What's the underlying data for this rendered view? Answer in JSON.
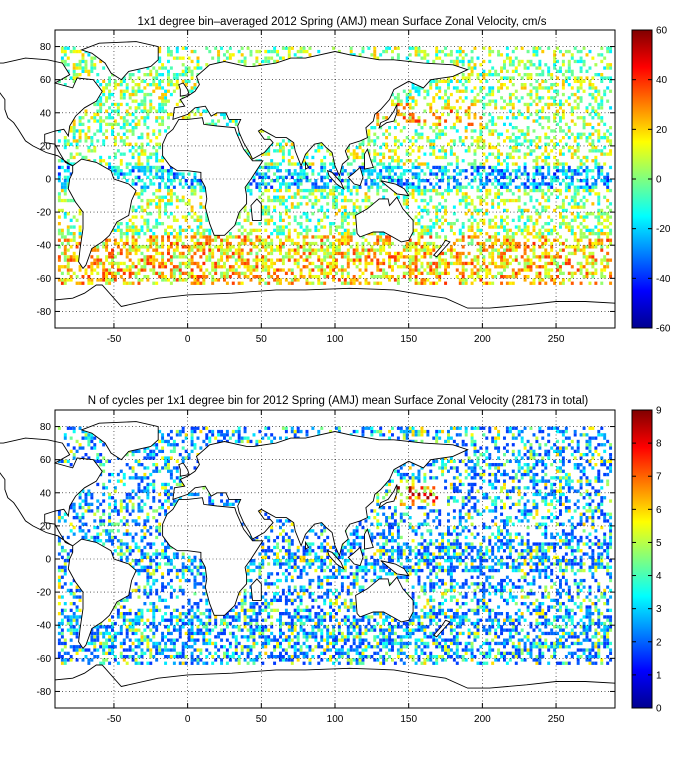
{
  "chart_data": [
    {
      "type": "heatmap",
      "title": "1x1 degree bin–averaged 2012 Spring (AMJ) mean Surface Zonal Velocity, cm/s",
      "xlim": [
        -90,
        290
      ],
      "ylim": [
        -90,
        90
      ],
      "x_ticks": [
        -50,
        0,
        50,
        100,
        150,
        200,
        250
      ],
      "x_tick_labels": [
        "-50",
        "0",
        "50",
        "100",
        "150",
        "200",
        "250"
      ],
      "y_ticks": [
        80,
        60,
        40,
        20,
        0,
        -20,
        -40,
        -60,
        -80
      ],
      "y_tick_labels": [
        "80",
        "60",
        "40",
        "20",
        "0",
        "-20",
        "-40",
        "-60",
        "-80"
      ],
      "grid": true,
      "colorbar": {
        "range": [
          -60,
          60
        ],
        "ticks": [
          60,
          40,
          20,
          0,
          -20,
          -40,
          -60
        ],
        "tick_labels": [
          "60",
          "40",
          "20",
          "0",
          "-20",
          "-40",
          "-60"
        ],
        "colormap": "jet"
      }
    },
    {
      "type": "heatmap",
      "title": "N of cycles per 1x1 degree bin for 2012 Spring (AMJ) mean Surface Zonal Velocity (28173 in total)",
      "xlim": [
        -90,
        290
      ],
      "ylim": [
        -90,
        90
      ],
      "x_ticks": [
        -50,
        0,
        50,
        100,
        150,
        200,
        250
      ],
      "x_tick_labels": [
        "-50",
        "0",
        "50",
        "100",
        "150",
        "200",
        "250"
      ],
      "y_ticks": [
        80,
        60,
        40,
        20,
        0,
        -20,
        -40,
        -60,
        -80
      ],
      "y_tick_labels": [
        "80",
        "60",
        "40",
        "20",
        "0",
        "-20",
        "-40",
        "-60",
        "-80"
      ],
      "grid": true,
      "colorbar": {
        "range": [
          0,
          9
        ],
        "ticks": [
          9,
          8,
          7,
          6,
          5,
          4,
          3,
          2,
          1,
          0
        ],
        "tick_labels": [
          "9",
          "8",
          "7",
          "6",
          "5",
          "4",
          "3",
          "2",
          "1",
          "0"
        ],
        "colormap": "jet"
      }
    }
  ]
}
